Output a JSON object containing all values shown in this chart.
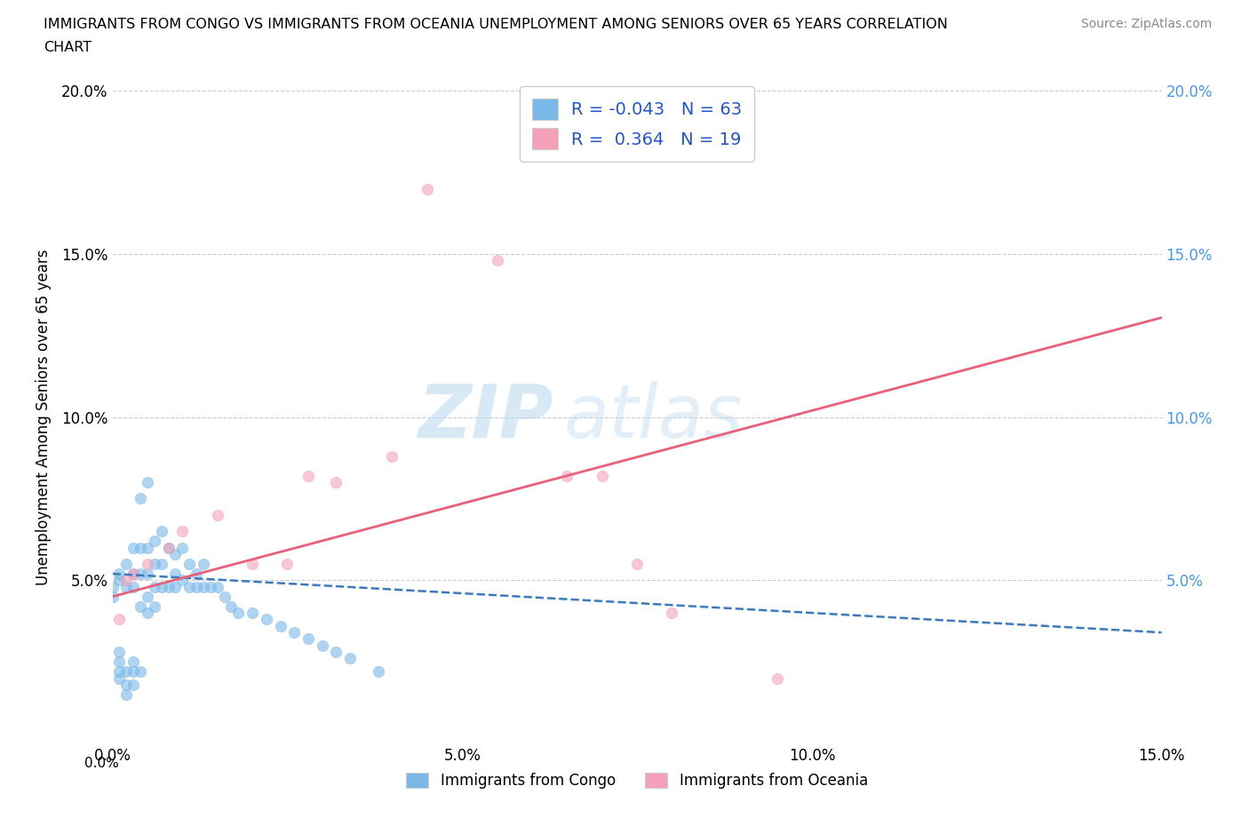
{
  "title_line1": "IMMIGRANTS FROM CONGO VS IMMIGRANTS FROM OCEANIA UNEMPLOYMENT AMONG SENIORS OVER 65 YEARS CORRELATION",
  "title_line2": "CHART",
  "source": "Source: ZipAtlas.com",
  "ylabel": "Unemployment Among Seniors over 65 years",
  "xlim": [
    0.0,
    0.15
  ],
  "ylim": [
    0.0,
    0.2
  ],
  "xticks": [
    0.0,
    0.05,
    0.1,
    0.15
  ],
  "yticks": [
    0.05,
    0.1,
    0.15,
    0.2
  ],
  "congo_color": "#7ab8e8",
  "oceania_color": "#f4a0b8",
  "congo_line_color": "#3a7abf",
  "oceania_line_color": "#e8607a",
  "right_tick_color": "#4499ee",
  "watermark_zip": "ZIP",
  "watermark_atlas": "atlas",
  "legend_R_congo": "-0.043",
  "legend_N_congo": "63",
  "legend_R_oceania": "0.364",
  "legend_N_oceania": "19",
  "legend_label_congo": "Immigrants from Congo",
  "legend_label_oceania": "Immigrants from Oceania",
  "congo_x": [
    0.0,
    0.0,
    0.001,
    0.001,
    0.001,
    0.001,
    0.001,
    0.001,
    0.002,
    0.002,
    0.002,
    0.002,
    0.002,
    0.003,
    0.003,
    0.003,
    0.003,
    0.003,
    0.003,
    0.004,
    0.004,
    0.004,
    0.004,
    0.004,
    0.005,
    0.005,
    0.005,
    0.005,
    0.005,
    0.006,
    0.006,
    0.006,
    0.006,
    0.007,
    0.007,
    0.007,
    0.008,
    0.008,
    0.009,
    0.009,
    0.009,
    0.01,
    0.01,
    0.011,
    0.011,
    0.012,
    0.012,
    0.013,
    0.013,
    0.014,
    0.015,
    0.016,
    0.017,
    0.018,
    0.02,
    0.022,
    0.024,
    0.026,
    0.028,
    0.03,
    0.032,
    0.034,
    0.038
  ],
  "congo_y": [
    0.045,
    0.048,
    0.02,
    0.022,
    0.025,
    0.028,
    0.05,
    0.052,
    0.015,
    0.018,
    0.022,
    0.048,
    0.055,
    0.018,
    0.022,
    0.025,
    0.048,
    0.052,
    0.06,
    0.022,
    0.042,
    0.052,
    0.06,
    0.075,
    0.04,
    0.045,
    0.052,
    0.06,
    0.08,
    0.042,
    0.048,
    0.055,
    0.062,
    0.048,
    0.055,
    0.065,
    0.048,
    0.06,
    0.048,
    0.052,
    0.058,
    0.05,
    0.06,
    0.048,
    0.055,
    0.048,
    0.052,
    0.048,
    0.055,
    0.048,
    0.048,
    0.045,
    0.042,
    0.04,
    0.04,
    0.038,
    0.036,
    0.034,
    0.032,
    0.03,
    0.028,
    0.026,
    0.022
  ],
  "oceania_x": [
    0.001,
    0.002,
    0.003,
    0.005,
    0.008,
    0.01,
    0.015,
    0.02,
    0.025,
    0.028,
    0.032,
    0.04,
    0.045,
    0.055,
    0.065,
    0.07,
    0.075,
    0.08,
    0.095
  ],
  "oceania_y": [
    0.038,
    0.05,
    0.052,
    0.055,
    0.06,
    0.065,
    0.07,
    0.055,
    0.055,
    0.082,
    0.08,
    0.088,
    0.17,
    0.148,
    0.082,
    0.082,
    0.055,
    0.04,
    0.02
  ]
}
